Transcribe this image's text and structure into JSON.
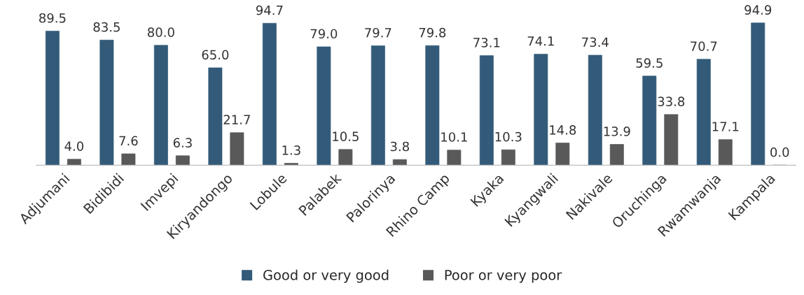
{
  "chart_data": {
    "type": "bar",
    "categories": [
      "Adjumani",
      "Bidibidi",
      "Imvepi",
      "Kiryandongo",
      "Lobule",
      "Palabek",
      "Palorinya",
      "Rhino Camp",
      "Kyaka",
      "Kyangwali",
      "Nakivale",
      "Oruchinga",
      "Rwamwanja",
      "Kampala"
    ],
    "series": [
      {
        "name": "Good or very good",
        "color": "#335b79",
        "values": [
          89.5,
          83.5,
          80.0,
          65.0,
          94.7,
          79.0,
          79.7,
          79.8,
          73.1,
          74.1,
          73.4,
          59.5,
          70.7,
          94.9
        ],
        "value_labels": [
          "89.5",
          "83.5",
          "80.0",
          "65.0",
          "94.7",
          "79.0",
          "79.7",
          "79.8",
          "73.1",
          "74.1",
          "73.4",
          "59.5",
          "70.7",
          "94.9"
        ]
      },
      {
        "name": "Poor or very poor",
        "color": "#595959",
        "values": [
          4.0,
          7.6,
          6.3,
          21.7,
          1.3,
          10.5,
          3.8,
          10.1,
          10.3,
          14.8,
          13.9,
          33.8,
          17.1,
          0.0
        ],
        "value_labels": [
          "4.0",
          "7.6",
          "6.3",
          "21.7",
          "1.3",
          "10.5",
          "3.8",
          "10.1",
          "10.3",
          "14.8",
          "13.9",
          "33.8",
          "17.1",
          "0.0"
        ]
      }
    ],
    "legend": "bottom",
    "grid": false,
    "tick_labels": "x"
  }
}
